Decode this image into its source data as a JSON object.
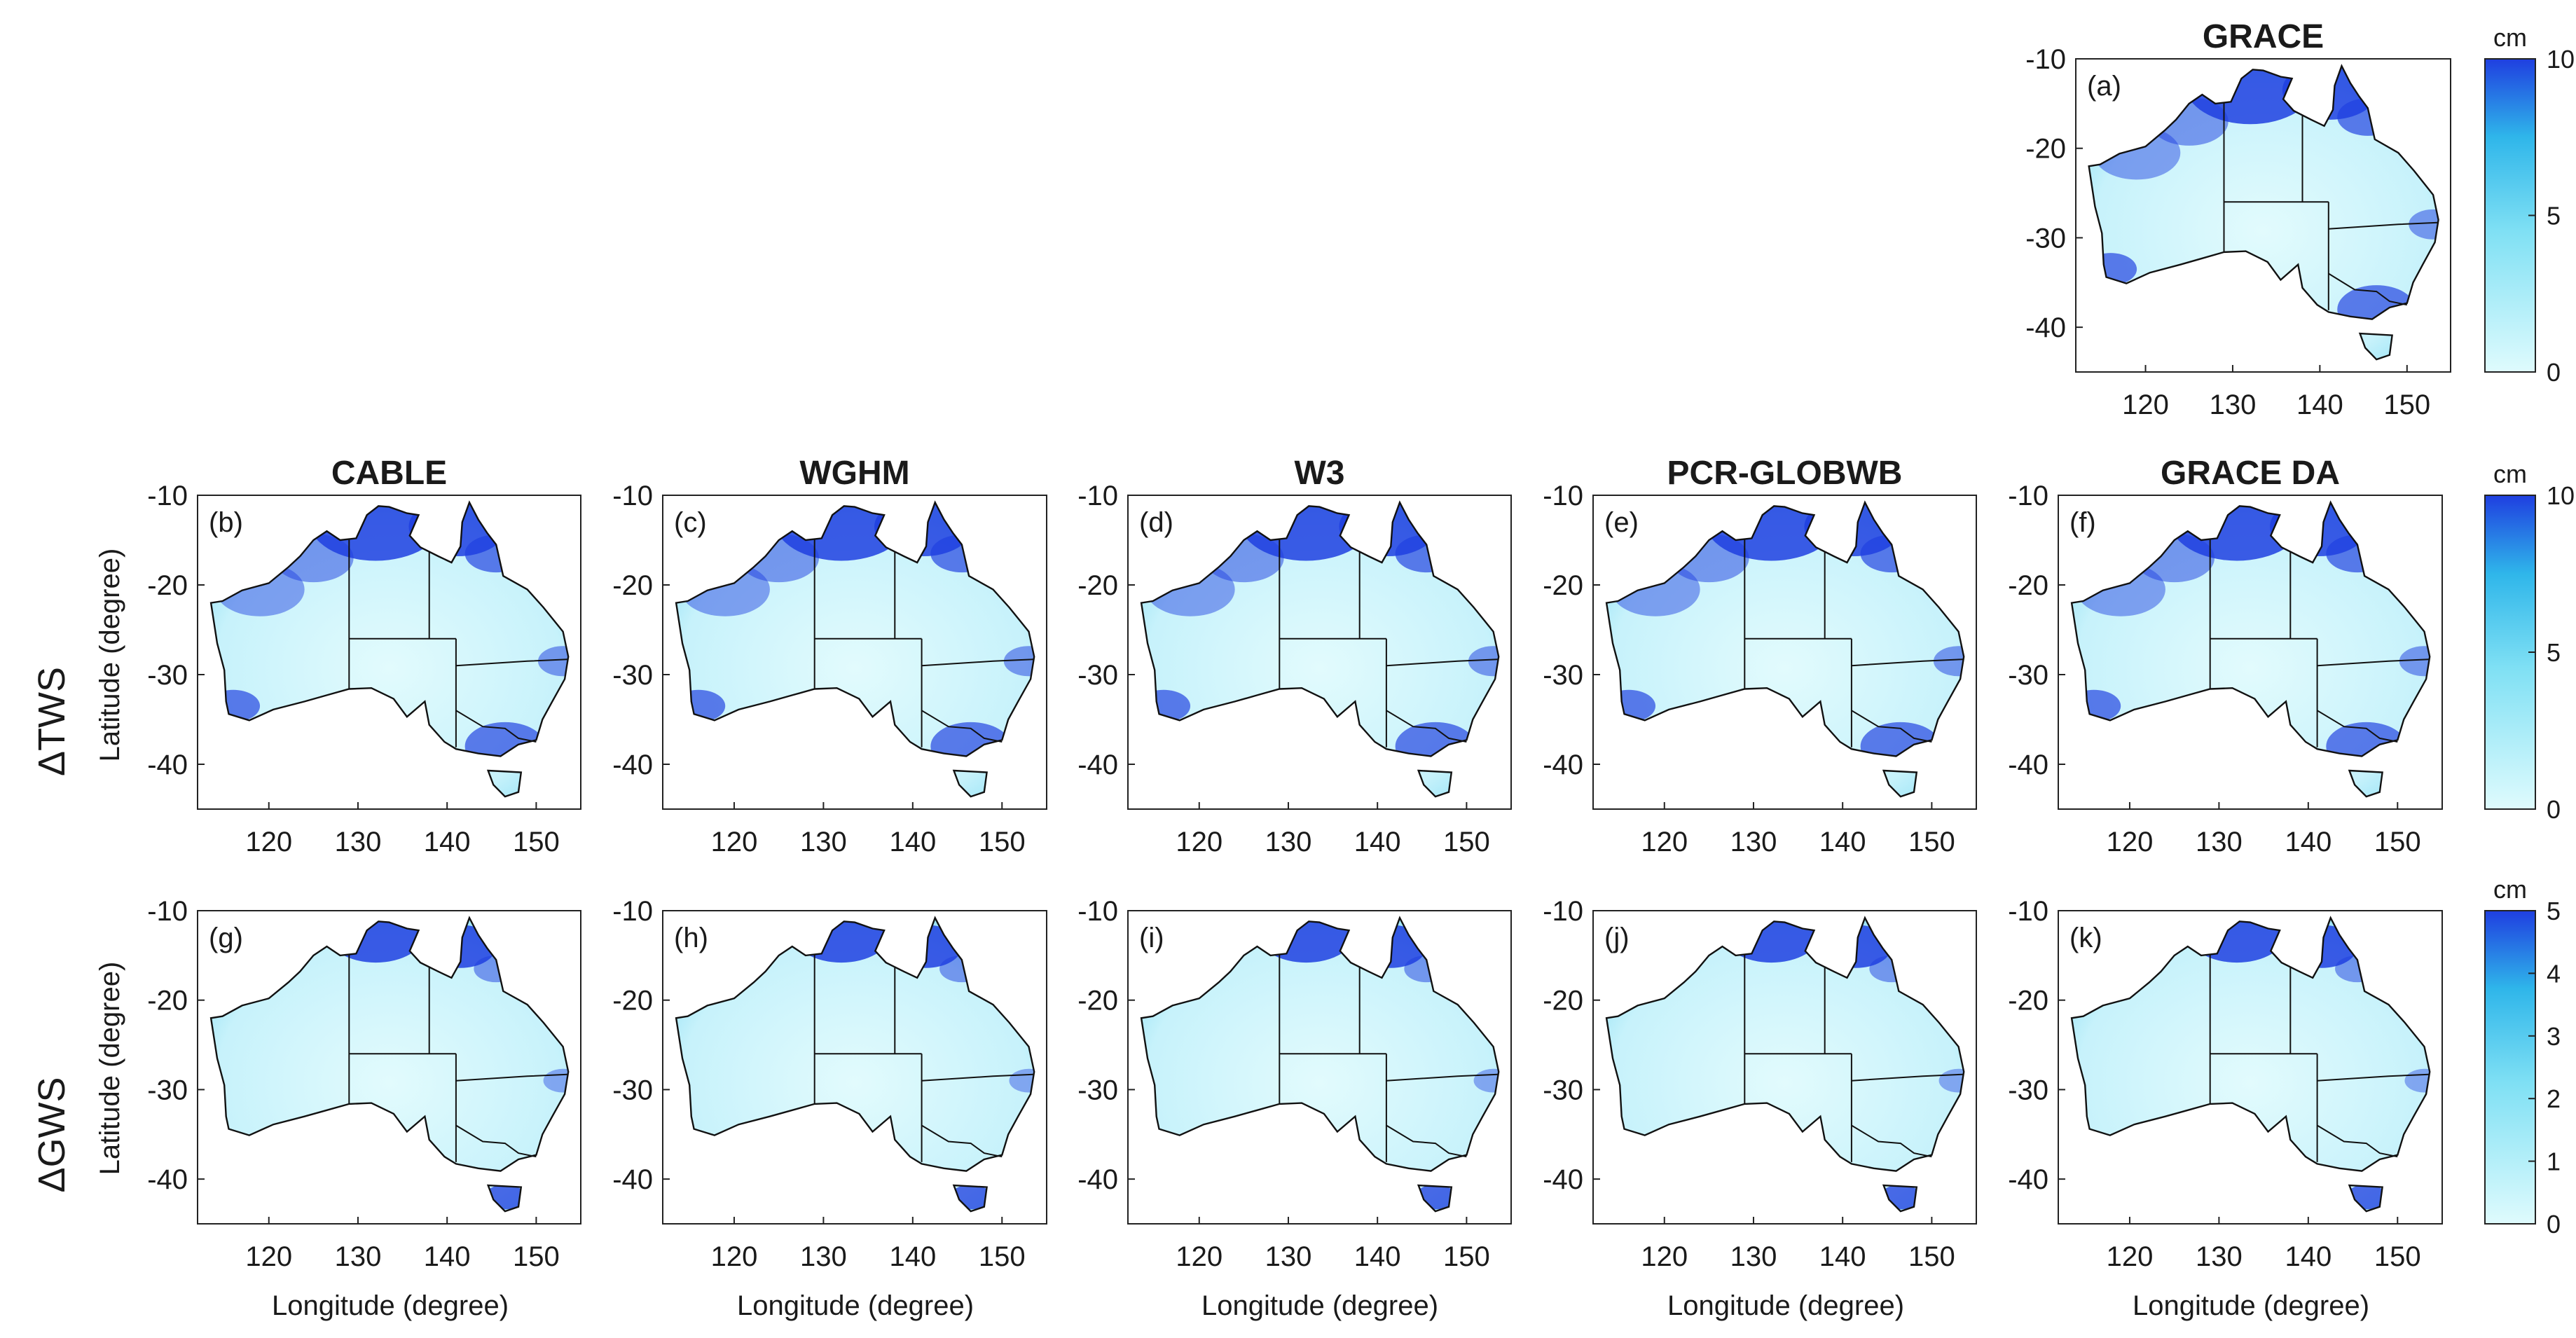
{
  "figure": {
    "row_labels": [
      "ΔTWS",
      "ΔGWS"
    ],
    "ylabel": "Latitude (degree)",
    "xlabel": "Longitude (degree)"
  },
  "chart_data": {
    "type": "heatmap",
    "xticks": [
      "120",
      "130",
      "140",
      "150"
    ],
    "yticks": [
      "-10",
      "-20",
      "-30",
      "-40"
    ],
    "xlim": [
      112,
      155
    ],
    "ylim": [
      -45,
      -10
    ],
    "panels": [
      {
        "id": "a",
        "label": "(a)",
        "title": "GRACE",
        "row": "top",
        "variable": "ΔTWS"
      },
      {
        "id": "b",
        "label": "(b)",
        "title": "CABLE",
        "row": "ΔTWS",
        "variable": "ΔTWS"
      },
      {
        "id": "c",
        "label": "(c)",
        "title": "WGHM",
        "row": "ΔTWS",
        "variable": "ΔTWS"
      },
      {
        "id": "d",
        "label": "(d)",
        "title": "W3",
        "row": "ΔTWS",
        "variable": "ΔTWS"
      },
      {
        "id": "e",
        "label": "(e)",
        "title": "PCR-GLOBWB",
        "row": "ΔTWS",
        "variable": "ΔTWS"
      },
      {
        "id": "f",
        "label": "(f)",
        "title": "GRACE DA",
        "row": "ΔTWS",
        "variable": "ΔTWS"
      },
      {
        "id": "g",
        "label": "(g)",
        "title": "",
        "row": "ΔGWS",
        "variable": "ΔGWS"
      },
      {
        "id": "h",
        "label": "(h)",
        "title": "",
        "row": "ΔGWS",
        "variable": "ΔGWS"
      },
      {
        "id": "i",
        "label": "(i)",
        "title": "",
        "row": "ΔGWS",
        "variable": "ΔGWS"
      },
      {
        "id": "j",
        "label": "(j)",
        "title": "",
        "row": "ΔGWS",
        "variable": "ΔGWS"
      },
      {
        "id": "k",
        "label": "(k)",
        "title": "",
        "row": "ΔGWS",
        "variable": "ΔGWS"
      }
    ],
    "colorbars": [
      {
        "id": "cb1",
        "unit": "cm",
        "min": 0,
        "max": 10,
        "ticks": [
          "0",
          "5",
          "10"
        ]
      },
      {
        "id": "cb2",
        "unit": "cm",
        "min": 0,
        "max": 10,
        "ticks": [
          "0",
          "5",
          "10"
        ]
      },
      {
        "id": "cb3",
        "unit": "cm",
        "min": 0,
        "max": 5,
        "ticks": [
          "0",
          "1",
          "2",
          "3",
          "4",
          "5"
        ]
      }
    ],
    "colors": {
      "low": "#dffbfd",
      "mid": "#3ec3ec",
      "high": "#1f3fe0",
      "border": "#111111"
    }
  }
}
